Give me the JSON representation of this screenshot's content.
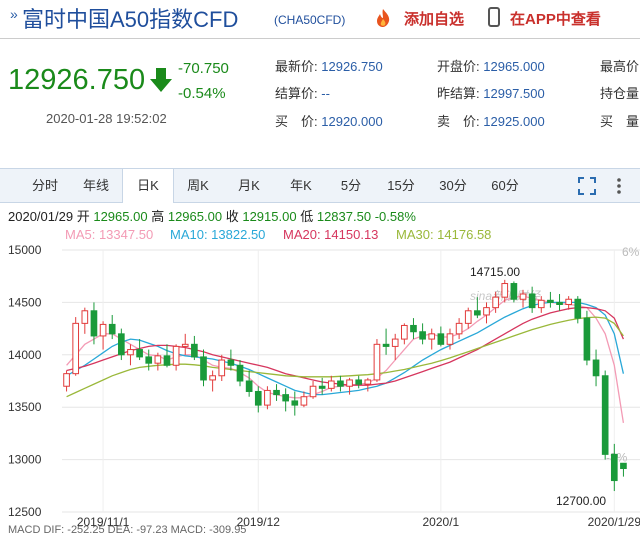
{
  "header": {
    "title": "富时中国A50指数CFD",
    "code": "(CHA50CFD)",
    "add_favorite": "添加自选",
    "view_in_app": "在APP中查看"
  },
  "quote": {
    "price": "12926.750",
    "change": "-70.750",
    "change_pct": "-0.54%",
    "datetime": "2020-01-28 19:52:02",
    "latest_label": "最新价:",
    "latest": "12926.750",
    "settle_label": "结算价:",
    "settle": "--",
    "buy_label": "买　价:",
    "buy": "12920.000",
    "open_label": "开盘价:",
    "open": "12965.000",
    "prev_label": "昨结算:",
    "prev_settle": "12997.500",
    "sell_label": "卖　价:",
    "sell": "12925.000",
    "high_label": "最高价",
    "holding_label": "持仓量",
    "buy_vol_label": "买　量"
  },
  "tabs": [
    "分时",
    "年线",
    "日K",
    "周K",
    "月K",
    "年K",
    "5分",
    "15分",
    "30分",
    "60分"
  ],
  "active_tab": "日K",
  "candle_info": {
    "date": "2020/01/29",
    "open_label": "开",
    "open": "12965.00",
    "high_label": "高",
    "high": "12965.00",
    "close_label": "收",
    "close": "12915.00",
    "low_label": "低",
    "low": "12837.50",
    "change": "-0.58%"
  },
  "ma": {
    "ma5": "MA5: 13347.50",
    "ma10": "MA10: 13822.50",
    "ma20": "MA20: 14150.13",
    "ma30": "MA30: 14176.58"
  },
  "colors": {
    "up": "#e23b3b",
    "down": "#1a9a3a",
    "ma5": "#f39bb5",
    "ma10": "#29a8d8",
    "ma20": "#d6365e",
    "ma30": "#9ab83a"
  },
  "watermark": "sina新浪财经",
  "bottom_text": "MACD  DIF: -252.25  DEA: -97.23  MACD: -309.95",
  "chart_data": {
    "type": "candlestick",
    "y_axis_ticks": [
      "15000",
      "14500",
      "14000",
      "13500",
      "13000",
      "12500"
    ],
    "ylim": [
      12500,
      15000
    ],
    "right_axis_ticks": [
      "6%",
      "-8%"
    ],
    "x_axis_ticks": [
      "2019/11/1",
      "2019/12",
      "2020/1",
      "2020/1/29"
    ],
    "annotations": {
      "max_label": "14715.00",
      "min_label": "12700.00"
    },
    "candles": [
      {
        "o": 13700,
        "h": 13850,
        "l": 13650,
        "c": 13820
      },
      {
        "o": 13820,
        "h": 14360,
        "l": 13800,
        "c": 14300
      },
      {
        "o": 14300,
        "h": 14450,
        "l": 14200,
        "c": 14420
      },
      {
        "o": 14420,
        "h": 14500,
        "l": 14100,
        "c": 14180
      },
      {
        "o": 14180,
        "h": 14320,
        "l": 14050,
        "c": 14290
      },
      {
        "o": 14290,
        "h": 14380,
        "l": 14150,
        "c": 14200
      },
      {
        "o": 14200,
        "h": 14250,
        "l": 13950,
        "c": 14000
      },
      {
        "o": 14000,
        "h": 14100,
        "l": 13900,
        "c": 14050
      },
      {
        "o": 14050,
        "h": 14150,
        "l": 13950,
        "c": 13980
      },
      {
        "o": 13980,
        "h": 14050,
        "l": 13850,
        "c": 13920
      },
      {
        "o": 13920,
        "h": 14020,
        "l": 13850,
        "c": 13990
      },
      {
        "o": 13990,
        "h": 14100,
        "l": 13880,
        "c": 13900
      },
      {
        "o": 13900,
        "h": 14100,
        "l": 13850,
        "c": 14080
      },
      {
        "o": 14080,
        "h": 14200,
        "l": 14000,
        "c": 14100
      },
      {
        "o": 14100,
        "h": 14180,
        "l": 13950,
        "c": 13980
      },
      {
        "o": 13980,
        "h": 14050,
        "l": 13700,
        "c": 13760
      },
      {
        "o": 13760,
        "h": 13850,
        "l": 13650,
        "c": 13800
      },
      {
        "o": 13800,
        "h": 14000,
        "l": 13750,
        "c": 13950
      },
      {
        "o": 13950,
        "h": 14050,
        "l": 13850,
        "c": 13900
      },
      {
        "o": 13900,
        "h": 13950,
        "l": 13700,
        "c": 13750
      },
      {
        "o": 13750,
        "h": 13850,
        "l": 13600,
        "c": 13650
      },
      {
        "o": 13650,
        "h": 13700,
        "l": 13450,
        "c": 13520
      },
      {
        "o": 13520,
        "h": 13700,
        "l": 13480,
        "c": 13660
      },
      {
        "o": 13660,
        "h": 13720,
        "l": 13560,
        "c": 13620
      },
      {
        "o": 13620,
        "h": 13680,
        "l": 13460,
        "c": 13560
      },
      {
        "o": 13560,
        "h": 13650,
        "l": 13420,
        "c": 13520
      },
      {
        "o": 13520,
        "h": 13650,
        "l": 13500,
        "c": 13600
      },
      {
        "o": 13600,
        "h": 13750,
        "l": 13580,
        "c": 13700
      },
      {
        "o": 13700,
        "h": 13780,
        "l": 13620,
        "c": 13680
      },
      {
        "o": 13680,
        "h": 13800,
        "l": 13650,
        "c": 13750
      },
      {
        "o": 13750,
        "h": 13800,
        "l": 13650,
        "c": 13700
      },
      {
        "o": 13700,
        "h": 13780,
        "l": 13620,
        "c": 13760
      },
      {
        "o": 13760,
        "h": 13800,
        "l": 13680,
        "c": 13720
      },
      {
        "o": 13720,
        "h": 13780,
        "l": 13650,
        "c": 13760
      },
      {
        "o": 13760,
        "h": 14150,
        "l": 13740,
        "c": 14100
      },
      {
        "o": 14100,
        "h": 14250,
        "l": 14000,
        "c": 14080
      },
      {
        "o": 14080,
        "h": 14200,
        "l": 13950,
        "c": 14150
      },
      {
        "o": 14150,
        "h": 14300,
        "l": 14100,
        "c": 14280
      },
      {
        "o": 14280,
        "h": 14350,
        "l": 14150,
        "c": 14220
      },
      {
        "o": 14220,
        "h": 14300,
        "l": 14100,
        "c": 14150
      },
      {
        "o": 14150,
        "h": 14250,
        "l": 14050,
        "c": 14200
      },
      {
        "o": 14200,
        "h": 14270,
        "l": 14080,
        "c": 14100
      },
      {
        "o": 14100,
        "h": 14250,
        "l": 14050,
        "c": 14200
      },
      {
        "o": 14200,
        "h": 14350,
        "l": 14150,
        "c": 14300
      },
      {
        "o": 14300,
        "h": 14450,
        "l": 14250,
        "c": 14420
      },
      {
        "o": 14420,
        "h": 14550,
        "l": 14350,
        "c": 14380
      },
      {
        "o": 14380,
        "h": 14500,
        "l": 14300,
        "c": 14450
      },
      {
        "o": 14450,
        "h": 14600,
        "l": 14400,
        "c": 14550
      },
      {
        "o": 14550,
        "h": 14715,
        "l": 14500,
        "c": 14680
      },
      {
        "o": 14680,
        "h": 14700,
        "l": 14500,
        "c": 14530
      },
      {
        "o": 14530,
        "h": 14620,
        "l": 14450,
        "c": 14580
      },
      {
        "o": 14580,
        "h": 14650,
        "l": 14400,
        "c": 14450
      },
      {
        "o": 14450,
        "h": 14560,
        "l": 14400,
        "c": 14520
      },
      {
        "o": 14520,
        "h": 14600,
        "l": 14450,
        "c": 14500
      },
      {
        "o": 14500,
        "h": 14580,
        "l": 14420,
        "c": 14480
      },
      {
        "o": 14480,
        "h": 14560,
        "l": 14430,
        "c": 14530
      },
      {
        "o": 14530,
        "h": 14560,
        "l": 14300,
        "c": 14350
      },
      {
        "o": 14350,
        "h": 14420,
        "l": 13900,
        "c": 13950
      },
      {
        "o": 13950,
        "h": 14050,
        "l": 13700,
        "c": 13800
      },
      {
        "o": 13800,
        "h": 13850,
        "l": 13000,
        "c": 13050
      },
      {
        "o": 13050,
        "h": 13150,
        "l": 12700,
        "c": 12800
      },
      {
        "o": 12965,
        "h": 12965,
        "l": 12837.5,
        "c": 12915
      }
    ],
    "ma_series": {
      "MA5": [
        13900,
        14000,
        14100,
        14150,
        14200,
        14200,
        14150,
        14100,
        14050,
        14000,
        13990,
        13950,
        13980,
        14000,
        14000,
        13950,
        13900,
        13880,
        13870,
        13830,
        13780,
        13700,
        13640,
        13620,
        13600,
        13590,
        13590,
        13620,
        13650,
        13690,
        13700,
        13710,
        13720,
        13730,
        13780,
        13850,
        13950,
        14050,
        14150,
        14180,
        14200,
        14170,
        14170,
        14200,
        14250,
        14320,
        14380,
        14450,
        14520,
        14550,
        14560,
        14540,
        14520,
        14500,
        14490,
        14480,
        14470,
        14450,
        14350,
        14200,
        13900,
        13350
      ],
      "MA10": [
        13800,
        13850,
        13900,
        13960,
        14020,
        14080,
        14120,
        14150,
        14140,
        14110,
        14080,
        14040,
        14010,
        13990,
        13980,
        13970,
        13960,
        13940,
        13920,
        13890,
        13860,
        13820,
        13780,
        13740,
        13700,
        13660,
        13640,
        13620,
        13620,
        13630,
        13640,
        13650,
        13660,
        13680,
        13700,
        13730,
        13780,
        13830,
        13890,
        13950,
        14000,
        14050,
        14090,
        14130,
        14170,
        14210,
        14260,
        14310,
        14360,
        14400,
        14440,
        14470,
        14490,
        14500,
        14500,
        14500,
        14500,
        14480,
        14450,
        14380,
        14200,
        13820
      ],
      "MA20": [
        13850,
        13870,
        13890,
        13920,
        13950,
        13980,
        14010,
        14040,
        14060,
        14080,
        14090,
        14090,
        14080,
        14070,
        14050,
        14030,
        14000,
        13980,
        13960,
        13940,
        13920,
        13900,
        13880,
        13850,
        13820,
        13800,
        13780,
        13760,
        13740,
        13730,
        13720,
        13710,
        13710,
        13710,
        13720,
        13730,
        13750,
        13780,
        13810,
        13840,
        13870,
        13900,
        13930,
        13970,
        14010,
        14050,
        14100,
        14150,
        14200,
        14250,
        14300,
        14340,
        14370,
        14400,
        14420,
        14440,
        14450,
        14450,
        14440,
        14420,
        14350,
        14150
      ],
      "MA30": [
        13600,
        13640,
        13680,
        13720,
        13760,
        13800,
        13830,
        13860,
        13880,
        13890,
        13900,
        13905,
        13910,
        13910,
        13905,
        13895,
        13880,
        13870,
        13860,
        13850,
        13840,
        13830,
        13820,
        13810,
        13800,
        13795,
        13790,
        13790,
        13790,
        13790,
        13795,
        13800,
        13805,
        13810,
        13820,
        13830,
        13845,
        13860,
        13880,
        13900,
        13920,
        13945,
        13970,
        14000,
        14030,
        14060,
        14090,
        14120,
        14150,
        14180,
        14210,
        14240,
        14265,
        14290,
        14310,
        14330,
        14345,
        14355,
        14360,
        14350,
        14300,
        14180
      ]
    }
  }
}
